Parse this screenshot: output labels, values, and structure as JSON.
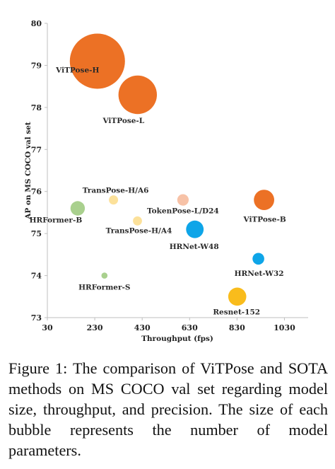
{
  "chart_data": {
    "type": "scatter",
    "bubble": true,
    "xlabel": "Throughput (fps)",
    "ylabel": "AP on MS COCO val set",
    "xlim": [
      30,
      1130
    ],
    "ylim": [
      73,
      80
    ],
    "x_ticks": [
      30,
      230,
      430,
      630,
      830,
      1030
    ],
    "y_ticks": [
      73,
      74,
      75,
      76,
      77,
      78,
      79,
      80
    ],
    "grid": false,
    "points": [
      {
        "name": "ViTPose-H",
        "x": 241,
        "y": 79.1,
        "size": 632,
        "color": "#ec7125"
      },
      {
        "name": "ViTPose-L",
        "x": 411,
        "y": 78.3,
        "size": 307,
        "color": "#ec7125"
      },
      {
        "name": "ViTPose-B",
        "x": 944,
        "y": 75.8,
        "size": 86,
        "color": "#ec7125"
      },
      {
        "name": "TransPose-H/A6",
        "x": 309,
        "y": 75.8,
        "size": 17.5,
        "color": "#fce19a"
      },
      {
        "name": "TransPose-H/A4",
        "x": 410,
        "y": 75.3,
        "size": 17.3,
        "color": "#fce19a"
      },
      {
        "name": "TokenPose-L/D24",
        "x": 602,
        "y": 75.8,
        "size": 27.5,
        "color": "#f7c2a7"
      },
      {
        "name": "HRFormer-B",
        "x": 158,
        "y": 75.6,
        "size": 43.2,
        "color": "#a9d08e"
      },
      {
        "name": "HRFormer-S",
        "x": 271,
        "y": 74.0,
        "size": 7.8,
        "color": "#a9d08e"
      },
      {
        "name": "HRNet-W48",
        "x": 652,
        "y": 75.1,
        "size": 63.6,
        "color": "#0ea5e8"
      },
      {
        "name": "HRNet-W32",
        "x": 920,
        "y": 74.4,
        "size": 28.5,
        "color": "#0ea5e8"
      },
      {
        "name": "Resnet-152",
        "x": 831,
        "y": 73.5,
        "size": 68.6,
        "color": "#f9bc1c"
      }
    ]
  },
  "caption": "Figure 1: The comparison of ViTPose and SOTA methods on MS COCO val set regarding model size, throughput, and precision. The size of each bubble represents the number of model parameters.",
  "colors": {
    "axis": "#bfbfbf",
    "text": "#222222"
  }
}
